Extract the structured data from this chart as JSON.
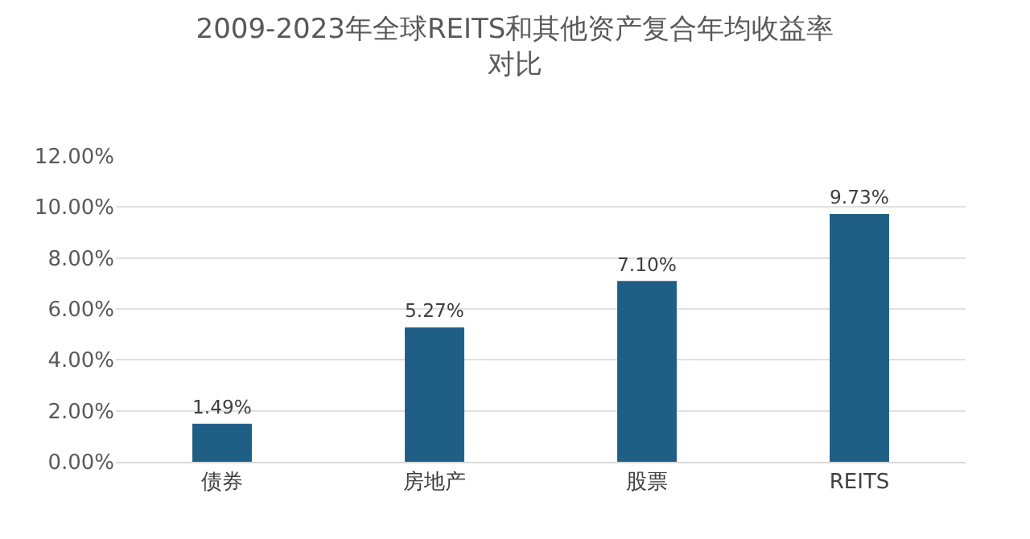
{
  "chart_data": {
    "type": "bar",
    "title": "2009-2023年全球REITS和其他资产复合年均收益率对比",
    "categories": [
      "债券",
      "房地产",
      "股票",
      "REITS"
    ],
    "values": [
      1.49,
      5.27,
      7.1,
      9.73
    ],
    "value_labels": [
      "1.49%",
      "5.27%",
      "7.10%",
      "9.73%"
    ],
    "color": "#1f5f86",
    "ylim": [
      0,
      12
    ],
    "yticks": [
      {
        "value": 0,
        "label": "0.00%"
      },
      {
        "value": 2,
        "label": "2.00%"
      },
      {
        "value": 4,
        "label": "4.00%"
      },
      {
        "value": 6,
        "label": "6.00%"
      },
      {
        "value": 8,
        "label": "8.00%"
      },
      {
        "value": 10,
        "label": "10.00%"
      },
      {
        "value": 12,
        "label": "12.00%"
      }
    ],
    "grid": "y"
  }
}
